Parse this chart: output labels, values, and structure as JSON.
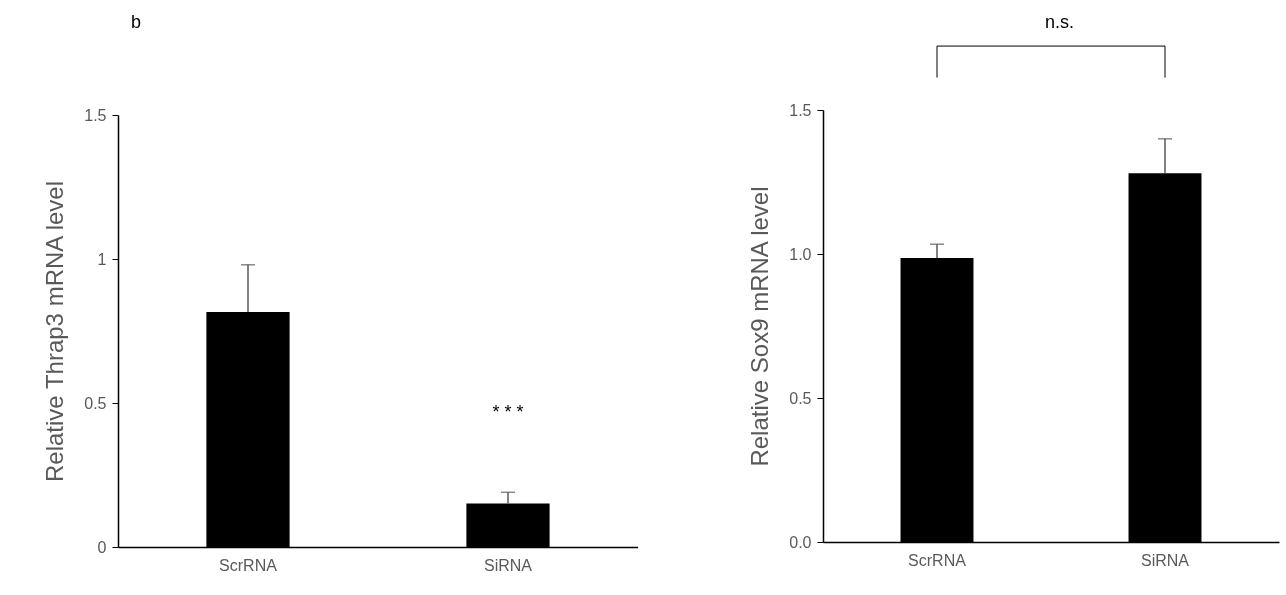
{
  "chart_data": [
    {
      "type": "bar",
      "categories": [
        "ScrRNA",
        "SiRNA"
      ],
      "values": [
        0.816,
        0.151
      ],
      "color": "#000000",
      "errors": [
        [
          0.816,
          0.98
        ],
        [
          0.151,
          0.19
        ]
      ],
      "ylabel": "Relative Thrap3 mRNA level",
      "ylim": [
        0,
        1.5
      ],
      "yticks": [
        0,
        0.5,
        1,
        1.5
      ],
      "grid": false,
      "annotations": [
        "b",
        "* * *"
      ]
    },
    {
      "type": "bar",
      "categories": [
        "ScrRNA",
        "SiRNA"
      ],
      "values": [
        0.986,
        1.28
      ],
      "color": "#000000",
      "errors": [
        [
          0.986,
          1.034
        ],
        [
          1.28,
          1.4
        ]
      ],
      "ylabel": "Relative Sox9 mRNA level",
      "ylim": [
        0,
        1.5
      ],
      "yticks": [
        {
          "value": 0,
          "label": "0.0"
        },
        0.5,
        {
          "value": 1,
          "label": "1.0"
        },
        1.5
      ],
      "grid": false,
      "annotations": [
        "n.s."
      ]
    }
  ]
}
